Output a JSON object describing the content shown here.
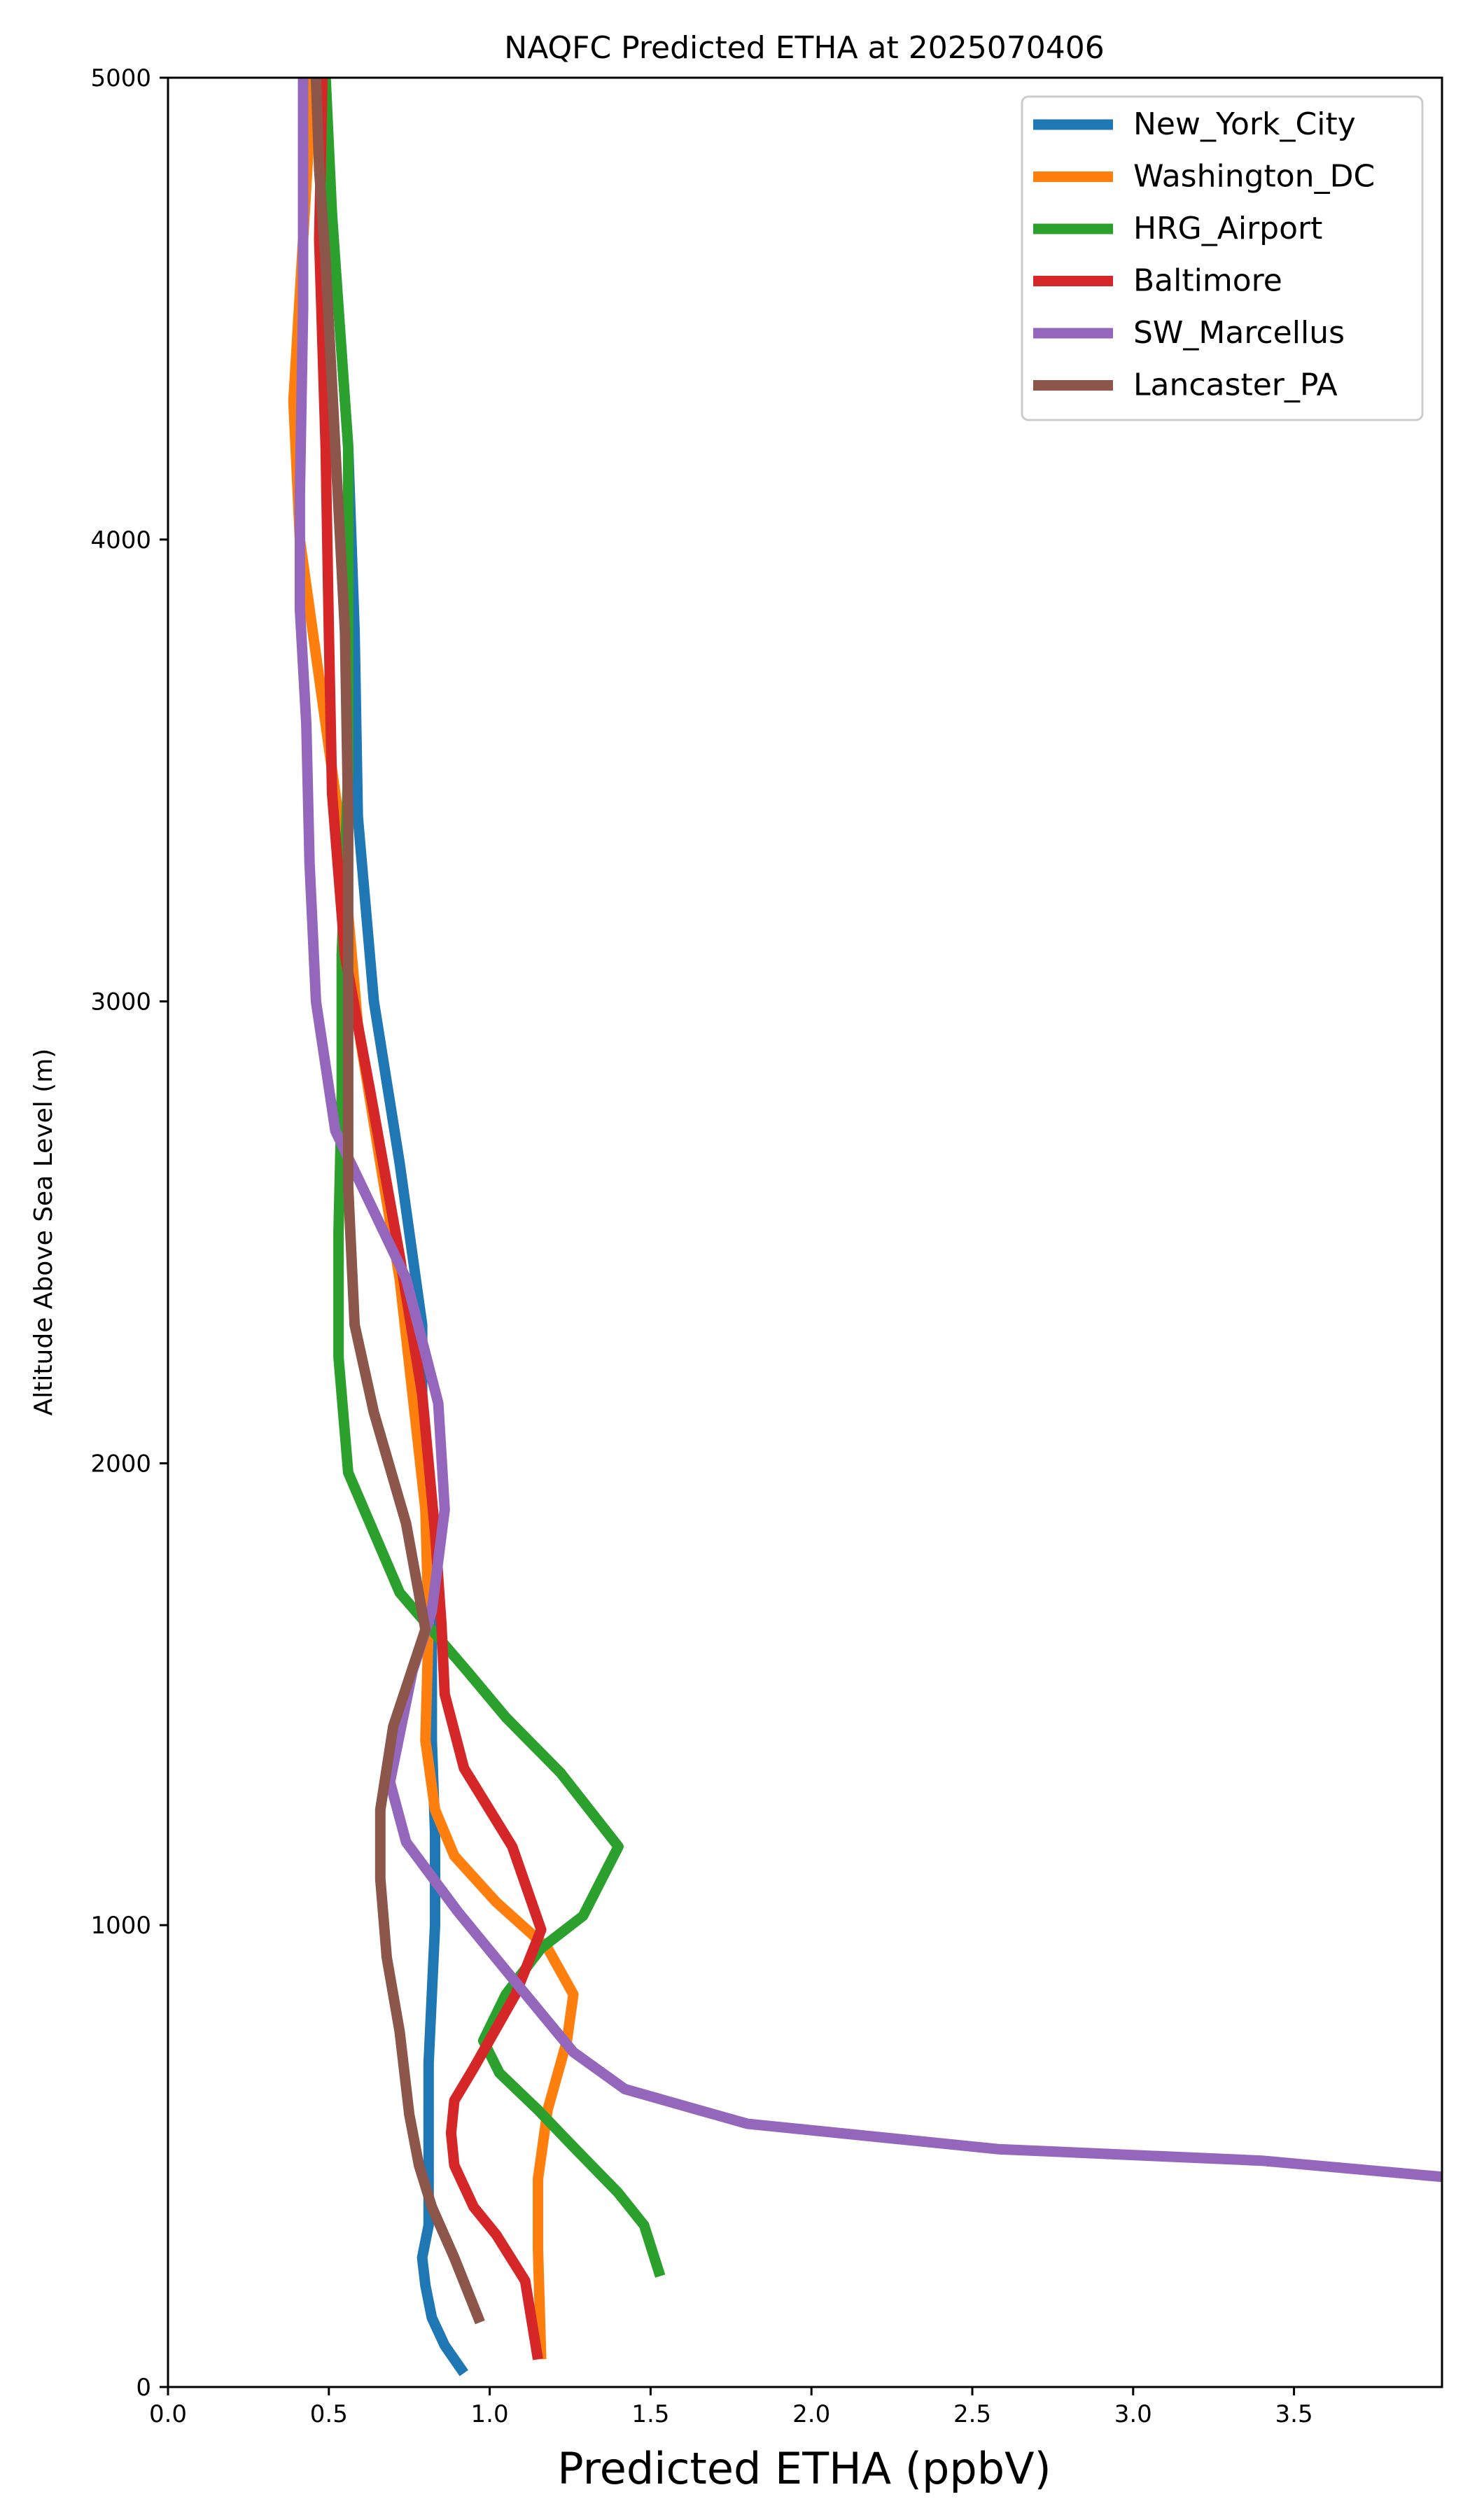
{
  "chart_data": {
    "type": "line",
    "title": "NAQFC Predicted ETHA at 2025070406",
    "xlabel": "Predicted ETHA (ppbV)",
    "ylabel": "Altitude Above Sea Level (m)",
    "xlim": [
      0,
      3.96
    ],
    "ylim": [
      0,
      5000
    ],
    "x_ticks": [
      {
        "value": 0.0,
        "label": "0.0"
      },
      {
        "value": 0.5,
        "label": "0.5"
      },
      {
        "value": 1.0,
        "label": "1.0"
      },
      {
        "value": 1.5,
        "label": "1.5"
      },
      {
        "value": 2.0,
        "label": "2.0"
      },
      {
        "value": 2.5,
        "label": "2.5"
      },
      {
        "value": 3.0,
        "label": "3.0"
      },
      {
        "value": 3.5,
        "label": "3.5"
      }
    ],
    "y_ticks": [
      {
        "value": 0,
        "label": "0"
      },
      {
        "value": 1000,
        "label": "1000"
      },
      {
        "value": 2000,
        "label": "2000"
      },
      {
        "value": 3000,
        "label": "3000"
      },
      {
        "value": 4000,
        "label": "4000"
      },
      {
        "value": 5000,
        "label": "5000"
      }
    ],
    "grid": false,
    "legend_position": "top-right",
    "series": [
      {
        "name": "New_York_City",
        "color": "#1f77b4",
        "points": [
          [
            0.92,
            30
          ],
          [
            0.86,
            90
          ],
          [
            0.82,
            150
          ],
          [
            0.8,
            220
          ],
          [
            0.79,
            280
          ],
          [
            0.81,
            350
          ],
          [
            0.81,
            450
          ],
          [
            0.81,
            550
          ],
          [
            0.81,
            700
          ],
          [
            0.82,
            850
          ],
          [
            0.83,
            1000
          ],
          [
            0.83,
            1200
          ],
          [
            0.82,
            1400
          ],
          [
            0.82,
            1650
          ],
          [
            0.8,
            1900
          ],
          [
            0.79,
            2100
          ],
          [
            0.79,
            2300
          ],
          [
            0.72,
            2650
          ],
          [
            0.64,
            3000
          ],
          [
            0.59,
            3400
          ],
          [
            0.58,
            3800
          ],
          [
            0.56,
            4200
          ],
          [
            0.52,
            4600
          ],
          [
            0.48,
            5000
          ]
        ]
      },
      {
        "name": "Washington_DC",
        "color": "#ff7f0e",
        "points": [
          [
            1.16,
            60
          ],
          [
            1.15,
            300
          ],
          [
            1.15,
            450
          ],
          [
            1.18,
            600
          ],
          [
            1.24,
            750
          ],
          [
            1.26,
            850
          ],
          [
            1.18,
            950
          ],
          [
            1.02,
            1050
          ],
          [
            0.89,
            1150
          ],
          [
            0.83,
            1250
          ],
          [
            0.8,
            1400
          ],
          [
            0.81,
            1650
          ],
          [
            0.8,
            1900
          ],
          [
            0.76,
            2150
          ],
          [
            0.72,
            2400
          ],
          [
            0.66,
            2650
          ],
          [
            0.59,
            2950
          ],
          [
            0.54,
            3350
          ],
          [
            0.47,
            3700
          ],
          [
            0.41,
            4000
          ],
          [
            0.39,
            4300
          ],
          [
            0.42,
            4650
          ],
          [
            0.45,
            5000
          ]
        ]
      },
      {
        "name": "HRG_Airport",
        "color": "#2ca02c",
        "points": [
          [
            1.53,
            240
          ],
          [
            1.48,
            350
          ],
          [
            1.4,
            420
          ],
          [
            1.26,
            520
          ],
          [
            1.15,
            600
          ],
          [
            1.03,
            680
          ],
          [
            0.98,
            750
          ],
          [
            1.05,
            850
          ],
          [
            1.16,
            950
          ],
          [
            1.29,
            1020
          ],
          [
            1.4,
            1170
          ],
          [
            1.22,
            1330
          ],
          [
            1.05,
            1450
          ],
          [
            0.93,
            1550
          ],
          [
            0.72,
            1720
          ],
          [
            0.56,
            1980
          ],
          [
            0.53,
            2230
          ],
          [
            0.53,
            2500
          ],
          [
            0.54,
            2800
          ],
          [
            0.54,
            3100
          ],
          [
            0.56,
            3500
          ],
          [
            0.56,
            4200
          ],
          [
            0.51,
            4700
          ],
          [
            0.49,
            5000
          ]
        ]
      },
      {
        "name": "Baltimore",
        "color": "#d62728",
        "points": [
          [
            1.15,
            60
          ],
          [
            1.11,
            230
          ],
          [
            1.02,
            330
          ],
          [
            0.95,
            390
          ],
          [
            0.89,
            480
          ],
          [
            0.88,
            550
          ],
          [
            0.89,
            620
          ],
          [
            0.95,
            690
          ],
          [
            1.08,
            850
          ],
          [
            1.16,
            990
          ],
          [
            1.07,
            1170
          ],
          [
            0.92,
            1340
          ],
          [
            0.86,
            1500
          ],
          [
            0.85,
            1650
          ],
          [
            0.83,
            1850
          ],
          [
            0.79,
            2150
          ],
          [
            0.72,
            2450
          ],
          [
            0.63,
            2800
          ],
          [
            0.55,
            3100
          ],
          [
            0.51,
            3450
          ],
          [
            0.5,
            3800
          ],
          [
            0.49,
            4200
          ],
          [
            0.47,
            4650
          ],
          [
            0.48,
            5000
          ]
        ]
      },
      {
        "name": "SW_Marcellus",
        "color": "#9467bd",
        "points": [
          [
            3.96,
            455
          ],
          [
            3.4,
            490
          ],
          [
            2.58,
            515
          ],
          [
            1.8,
            570
          ],
          [
            1.42,
            645
          ],
          [
            1.26,
            725
          ],
          [
            1.1,
            860
          ],
          [
            0.9,
            1030
          ],
          [
            0.74,
            1180
          ],
          [
            0.69,
            1310
          ],
          [
            0.76,
            1550
          ],
          [
            0.82,
            1680
          ],
          [
            0.86,
            1900
          ],
          [
            0.84,
            2130
          ],
          [
            0.74,
            2400
          ],
          [
            0.52,
            2720
          ],
          [
            0.46,
            3000
          ],
          [
            0.44,
            3300
          ],
          [
            0.43,
            3600
          ],
          [
            0.41,
            3850
          ],
          [
            0.41,
            4100
          ],
          [
            0.42,
            4500
          ],
          [
            0.42,
            5000
          ]
        ]
      },
      {
        "name": "Lancaster_PA",
        "color": "#8c564b",
        "points": [
          [
            0.97,
            140
          ],
          [
            0.89,
            280
          ],
          [
            0.82,
            390
          ],
          [
            0.78,
            480
          ],
          [
            0.75,
            590
          ],
          [
            0.72,
            770
          ],
          [
            0.68,
            930
          ],
          [
            0.66,
            1100
          ],
          [
            0.66,
            1250
          ],
          [
            0.7,
            1430
          ],
          [
            0.8,
            1640
          ],
          [
            0.74,
            1870
          ],
          [
            0.64,
            2110
          ],
          [
            0.58,
            2300
          ],
          [
            0.56,
            2600
          ],
          [
            0.56,
            3000
          ],
          [
            0.56,
            3400
          ],
          [
            0.55,
            3800
          ],
          [
            0.52,
            4200
          ],
          [
            0.49,
            4600
          ],
          [
            0.47,
            4800
          ],
          [
            0.46,
            5000
          ]
        ]
      }
    ]
  }
}
